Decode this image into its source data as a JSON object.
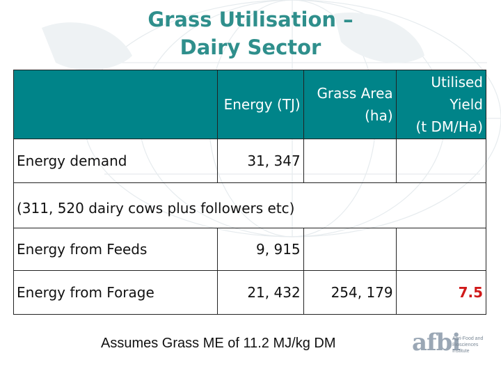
{
  "title": {
    "line1": "Grass Utilisation –",
    "line2": "Dairy Sector"
  },
  "table": {
    "headers": {
      "energy": "Energy (TJ)",
      "area_line1": "Grass Area",
      "area_line2": "(ha)",
      "yield_line1": "Utilised",
      "yield_line2": "Yield",
      "yield_line3": "(t DM/Ha)"
    },
    "rows": {
      "demand": {
        "label": "Energy demand",
        "energy": "31, 347"
      },
      "note": {
        "text": "(311, 520 dairy cows plus followers etc)"
      },
      "feeds": {
        "label": "Energy from Feeds",
        "energy": "9, 915"
      },
      "forage": {
        "label": "Energy from Forage",
        "energy": "21, 432",
        "area": "254, 179",
        "yield": "7.5"
      }
    }
  },
  "footnote": "Assumes Grass ME of 11.2 MJ/kg DM",
  "logo": {
    "word": "afbi",
    "sub": "Agri-Food and Biosciences Institute"
  },
  "colors": {
    "title": "#2f8f8c",
    "header_bg": "#008489",
    "highlight": "#d01a1a"
  }
}
